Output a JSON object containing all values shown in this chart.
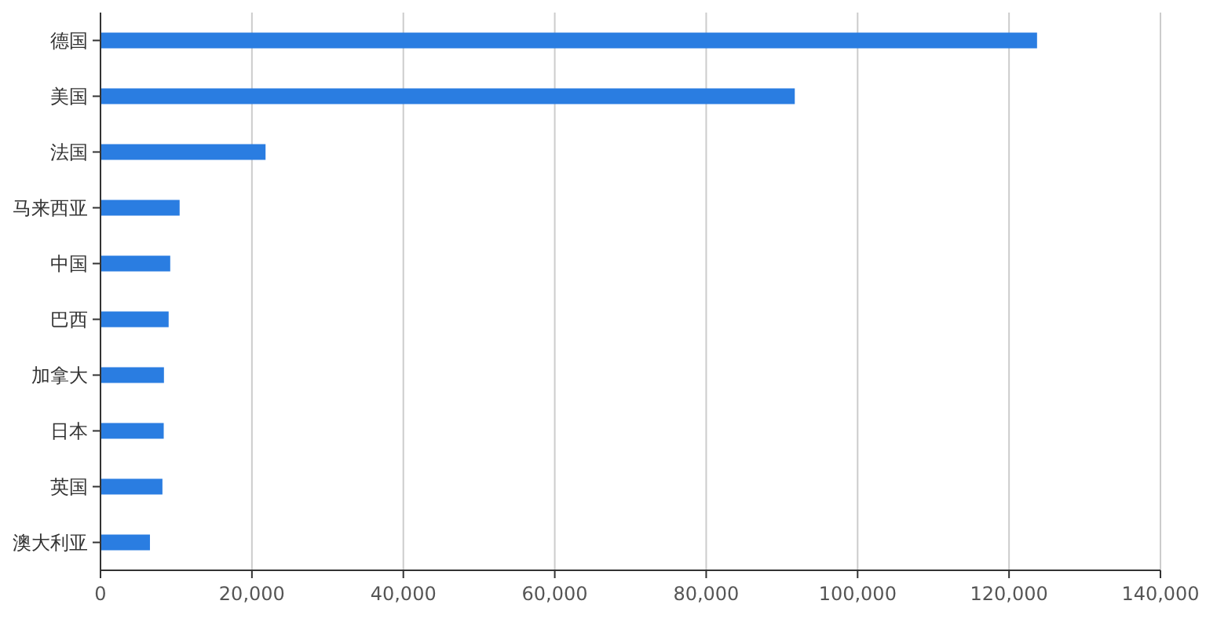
{
  "chart_data": {
    "type": "bar",
    "orientation": "horizontal",
    "categories": [
      "德国",
      "美国",
      "法国",
      "马来西亚",
      "中国",
      "巴西",
      "加拿大",
      "日本",
      "英国",
      "澳大利亚"
    ],
    "values": [
      123700,
      91700,
      21800,
      10450,
      9210,
      9000,
      8380,
      8350,
      8180,
      6530
    ],
    "color": "#2a7de1",
    "xlim": [
      0,
      140000
    ],
    "xticks": [
      0,
      {
        "value": 20000,
        "label": "20,000"
      },
      {
        "value": 40000,
        "label": "40,000"
      },
      {
        "value": 60000,
        "label": "60,000"
      },
      {
        "value": 80000,
        "label": "80,000"
      },
      {
        "value": 100000,
        "label": "100,000"
      },
      {
        "value": 120000,
        "label": "120,000"
      },
      {
        "value": 140000,
        "label": "140,000"
      }
    ],
    "grid": "x"
  }
}
